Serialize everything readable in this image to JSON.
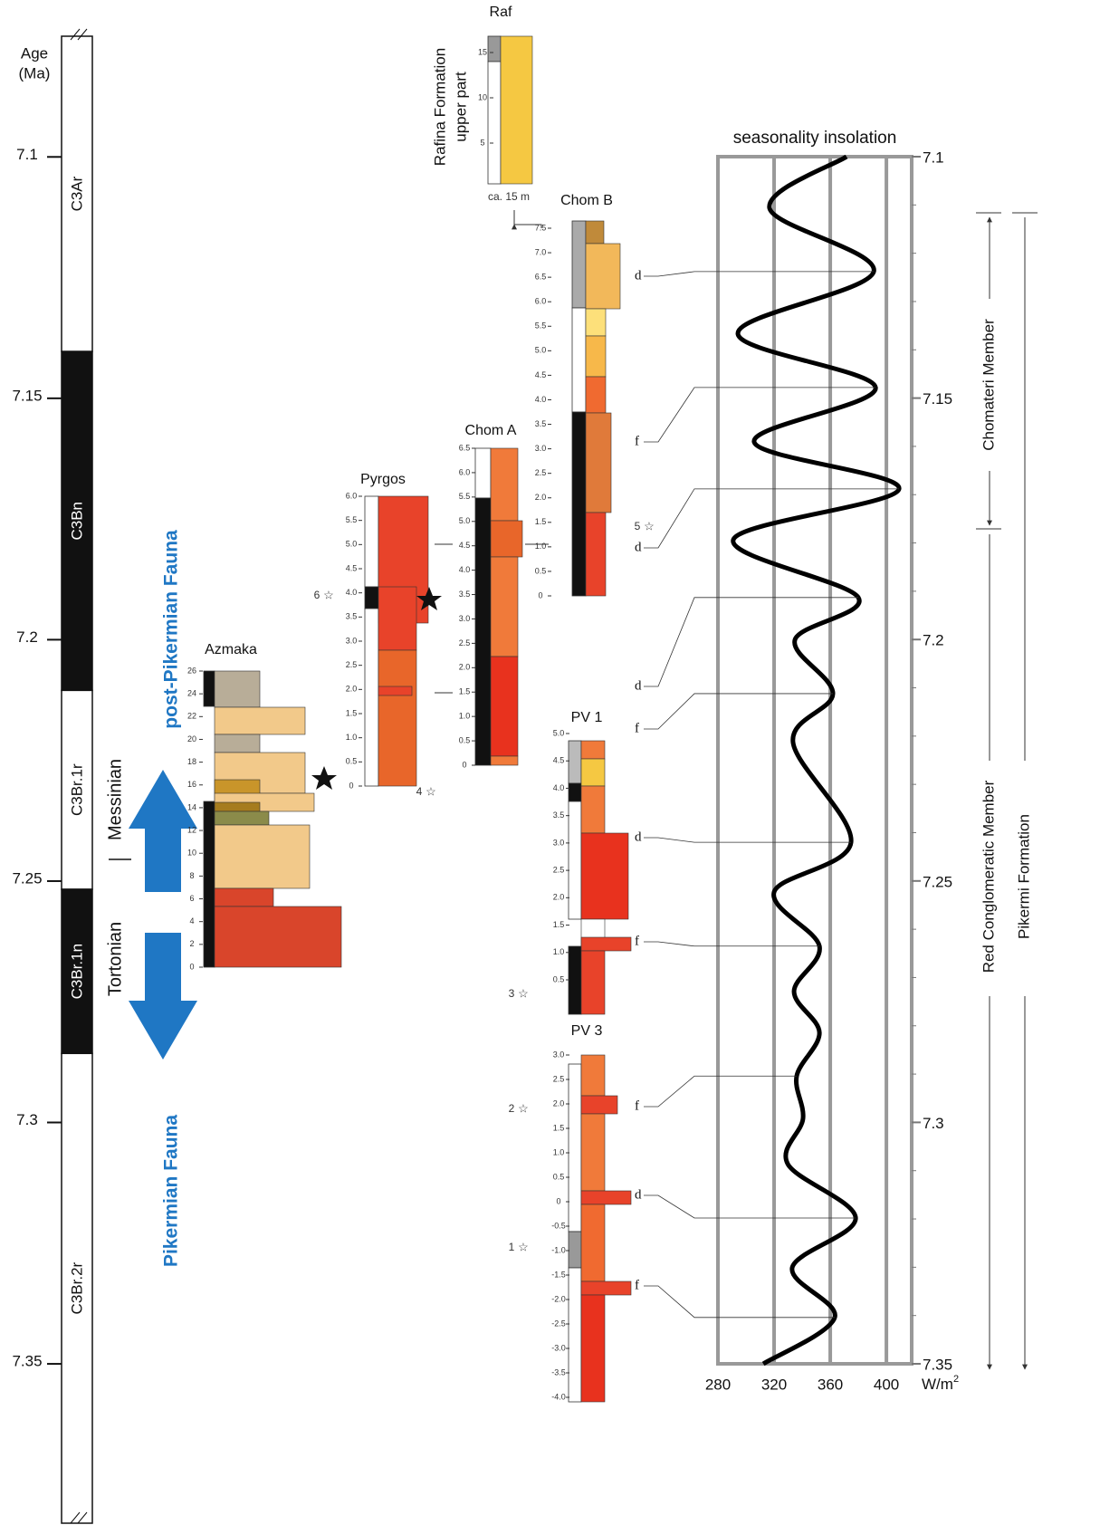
{
  "age_axis": {
    "label_lines": [
      "Age",
      "(Ma)"
    ],
    "lim": [
      7.075,
      7.383
    ],
    "ticks": [
      7.1,
      7.15,
      7.2,
      7.25,
      7.3,
      7.35
    ]
  },
  "polarity": [
    {
      "name": "C3Ar",
      "normal": false,
      "top": 7.075,
      "base": 7.1403
    },
    {
      "name": "C3Bn",
      "normal": true,
      "top": 7.1403,
      "base": 7.2105
    },
    {
      "name": "C3Br.1r",
      "normal": false,
      "top": 7.2105,
      "base": 7.2517
    },
    {
      "name": "C3Br.1n",
      "normal": true,
      "top": 7.2517,
      "base": 7.2857
    },
    {
      "name": "C3Br.2r",
      "normal": false,
      "top": 7.2857,
      "base": 7.383
    }
  ],
  "stages": {
    "upper": "Messinian",
    "lower": "Tortonian",
    "boundary": 7.2455
  },
  "fauna": {
    "upper": "post-Pikermian Fauna",
    "lower": "Pikermian Fauna"
  },
  "sections": [
    {
      "name": "Azmaka",
      "ticks": [
        "26",
        "24",
        "22",
        "20",
        "18",
        "16",
        "14",
        "12",
        "10",
        "8",
        "6",
        "4",
        "2",
        "0"
      ]
    },
    {
      "name": "Pyrgos",
      "ticks": [
        "6.0",
        "5.5",
        "5.0",
        "4.5",
        "4.0",
        "3.5",
        "3.0",
        "2.5",
        "2.0",
        "1.5",
        "1.0",
        "0.5",
        "0"
      ]
    },
    {
      "name": "Chom A",
      "ticks": [
        "6.5",
        "6.0",
        "5.5",
        "5.0",
        "4.5",
        "4.0",
        "3.5",
        "3.0",
        "2.5",
        "2.0",
        "1.5",
        "1.0",
        "0.5",
        "0"
      ]
    },
    {
      "name": "Chom B",
      "ticks": [
        "7.5",
        "7.0",
        "6.5",
        "6.0",
        "5.5",
        "5.0",
        "4.5",
        "4.0",
        "3.5",
        "3.0",
        "2.5",
        "2.0",
        "1.5",
        "1.0",
        "0.5",
        "0"
      ]
    },
    {
      "name": "Raf",
      "ticks": [
        "15",
        "10",
        "5"
      ]
    },
    {
      "name": "PV 1",
      "ticks": [
        "5.0",
        "4.5",
        "4.0",
        "3.5",
        "3.0",
        "2.5",
        "2.0",
        "1.5",
        "1.0",
        "0.5"
      ]
    },
    {
      "name": "PV 3",
      "ticks": [
        "3.0",
        "2.5",
        "2.0",
        "1.5",
        "1.0",
        "0.5",
        "0",
        "-0.5",
        "-1.0",
        "-1.5",
        "-2.0",
        "-2.5",
        "-3.0",
        "-3.5",
        "-4.0"
      ]
    }
  ],
  "rafina": {
    "lines": [
      "Rafina Formation",
      "upper part"
    ],
    "thickness": "ca. 15 m"
  },
  "horizons": [
    "1",
    "2",
    "3",
    "4",
    "5",
    "6"
  ],
  "correlation_marks": [
    "d",
    "f",
    "d",
    "d",
    "f",
    "d",
    "f",
    "f",
    "d",
    "f"
  ],
  "members": {
    "upper": "Chomateri Member",
    "lower": "Red Conglomeratic Member",
    "formation": "Pikermi Formation"
  },
  "insolation": {
    "title": "seasonality insolation",
    "unit": "W/m",
    "unit_sup": "2",
    "xlim": [
      280,
      418
    ],
    "xticks": [
      280,
      320,
      360,
      400
    ],
    "ylim": [
      7.1,
      7.35
    ],
    "yticks": [
      7.1,
      7.15,
      7.2,
      7.25,
      7.3,
      7.35
    ],
    "ages": [
      7.1,
      7.1107,
      7.1238,
      7.1366,
      7.1478,
      7.1591,
      7.1688,
      7.1793,
      7.1913,
      7.2001,
      7.2112,
      7.2213,
      7.242,
      7.2523,
      7.2635,
      7.2729,
      7.2814,
      7.2904,
      7.2992,
      7.3086,
      7.3198,
      7.3301,
      7.3404,
      7.35
    ],
    "values": [
      371.6,
      316.8,
      391,
      294.2,
      392.3,
      305.8,
      409,
      291,
      380,
      334.8,
      361.9,
      333.5,
      374.8,
      320,
      352.3,
      334.2,
      352.3,
      336.1,
      340.6,
      329.7,
      378.1,
      332.9,
      363.2,
      312.3
    ]
  }
}
